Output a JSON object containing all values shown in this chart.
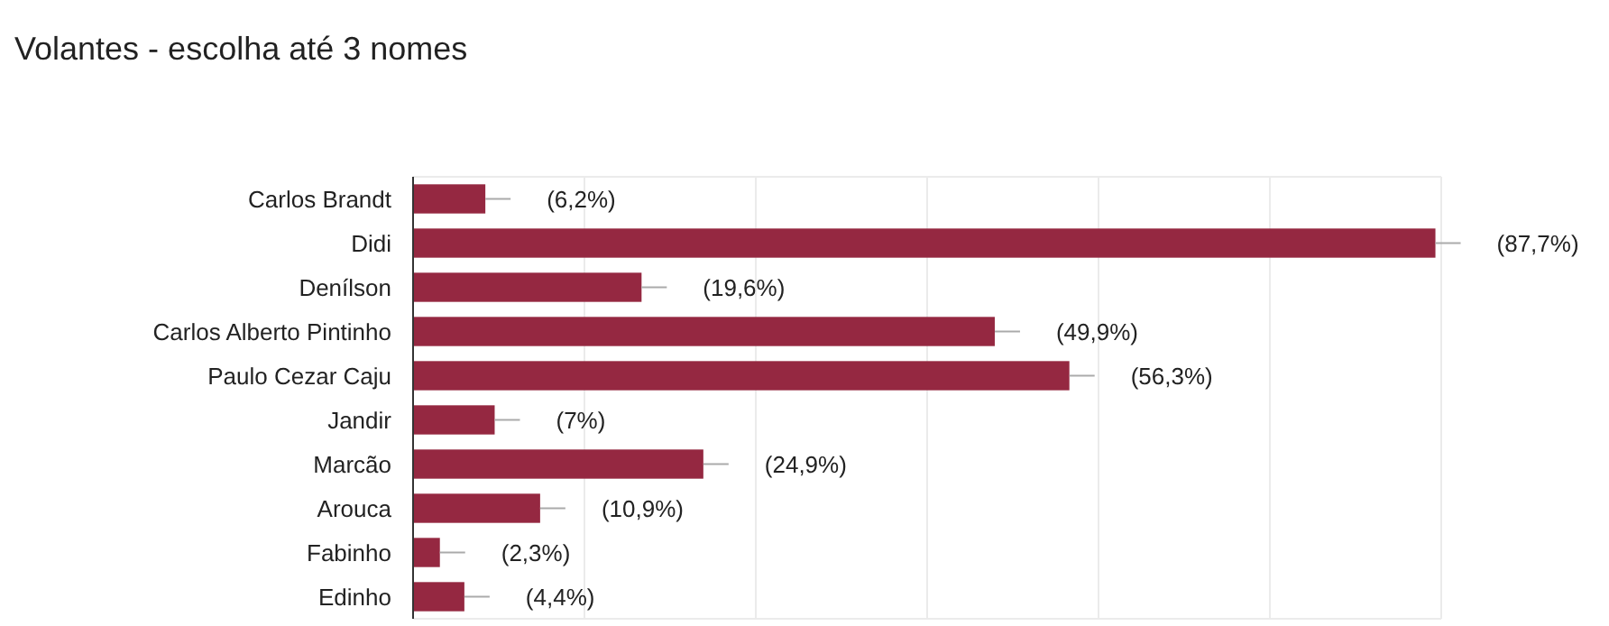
{
  "chart_data": {
    "type": "bar",
    "orientation": "horizontal",
    "title": "Volantes - escolha até 3 nomes",
    "categories": [
      "Carlos Brandt",
      "Didi",
      "Denílson",
      "Carlos Alberto Pintinho",
      "Paulo Cezar Caju",
      "Jandir",
      "Marcão",
      "Arouca",
      "Fabinho",
      "Edinho"
    ],
    "values": [
      6.2,
      87.7,
      19.6,
      49.9,
      56.3,
      7,
      24.9,
      10.9,
      2.3,
      4.4
    ],
    "value_labels": [
      "(6,2%)",
      "(87,7%)",
      "(19,6%)",
      "(49,9%)",
      "(56,3%)",
      "(7%)",
      "(24,9%)",
      "(10,9%)",
      "(2,3%)",
      "(4,4%)"
    ],
    "color": "#952841",
    "xlim": [
      0,
      88.2
    ],
    "xticks": [
      {
        "value": 0,
        "label": null
      },
      {
        "value": 14.7,
        "label": null
      },
      {
        "value": 29.4,
        "label": null
      },
      {
        "value": 44.1,
        "label": null
      },
      {
        "value": 58.8,
        "label": null
      },
      {
        "value": 73.5,
        "label": null
      },
      {
        "value": 88.2,
        "label": null
      }
    ],
    "grid": "x",
    "tick_labels": "y"
  }
}
